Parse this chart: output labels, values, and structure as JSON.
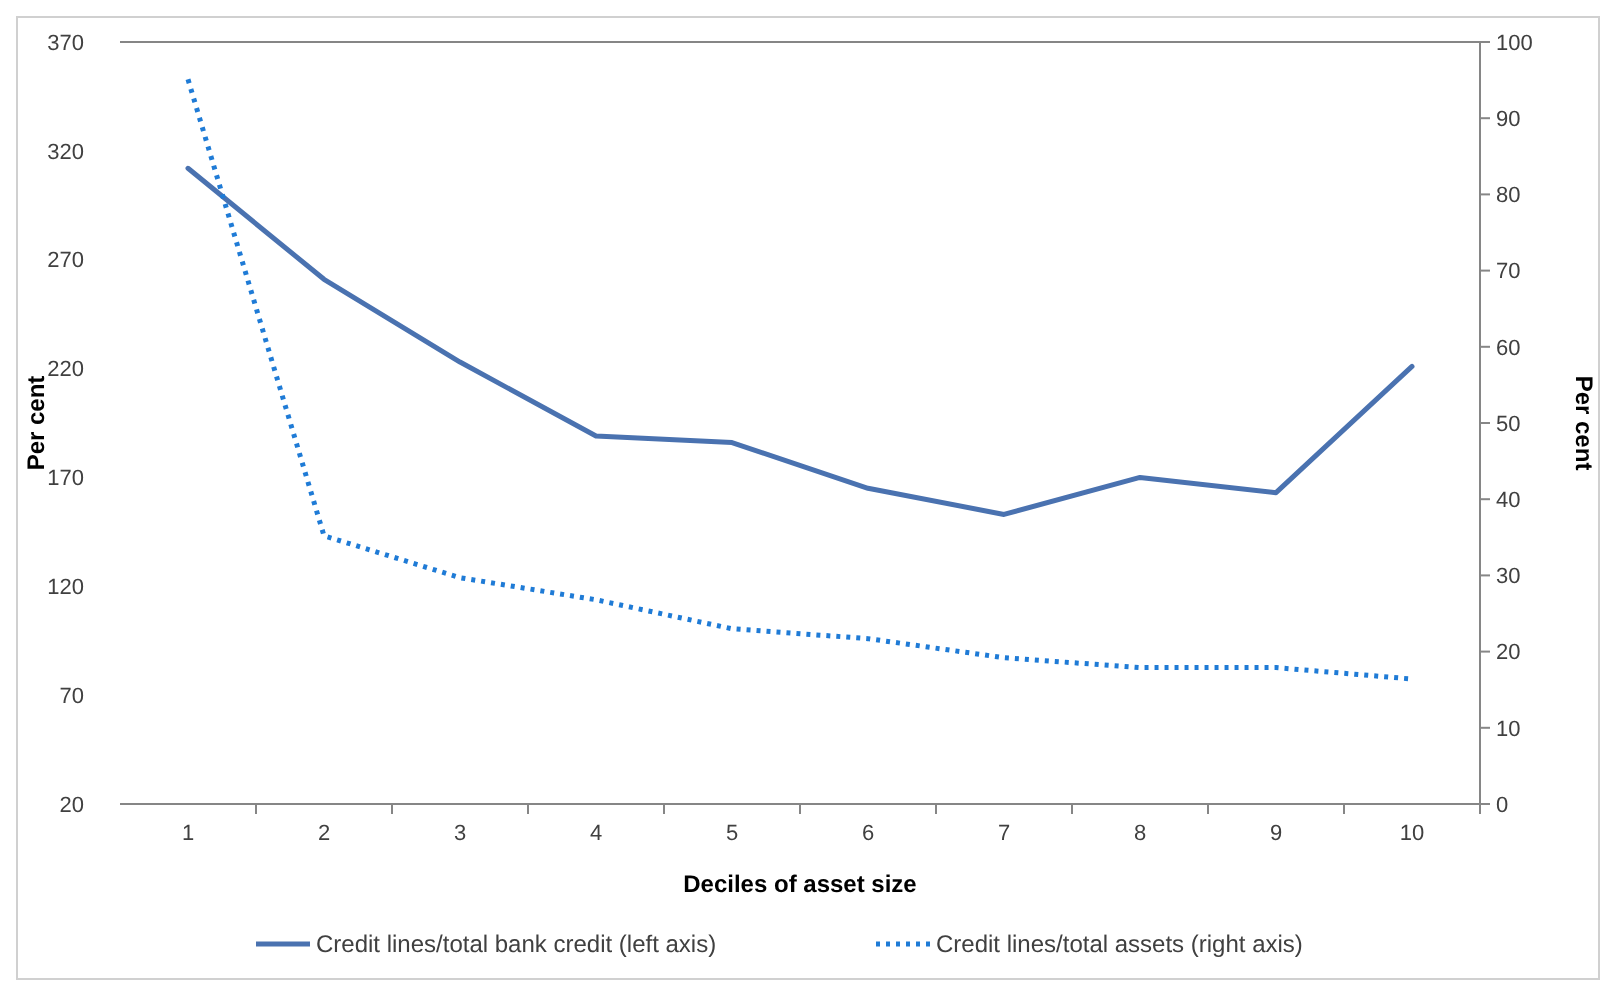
{
  "chart_data": {
    "type": "line",
    "xlabel": "Deciles of asset size",
    "ylabel": "Per cent",
    "y2label": "Per cent",
    "categories": [
      "1",
      "2",
      "3",
      "4",
      "5",
      "6",
      "7",
      "8",
      "9",
      "10"
    ],
    "series": [
      {
        "name": "Credit lines/total bank credit (left axis)",
        "color": "#4a72b0",
        "line_style": "solid",
        "values": [
          312,
          261,
          223,
          189,
          186,
          165,
          153,
          170,
          163,
          221
        ]
      },
      {
        "name": "Credit lines/total assets (right axis)",
        "color": "#1f7bd6",
        "line_style": "dotted",
        "axis": "y2",
        "values": [
          95.1,
          35.2,
          29.7,
          26.8,
          23.0,
          21.7,
          19.2,
          17.9,
          17.9,
          16.4
        ]
      }
    ],
    "ylim": [
      20,
      370
    ],
    "yticks": [
      20,
      70,
      120,
      170,
      220,
      270,
      320,
      370
    ],
    "y2lim": [
      0,
      100
    ],
    "y2ticks": [
      0,
      10,
      20,
      30,
      40,
      50,
      60,
      70,
      80,
      90,
      100
    ],
    "grid": false,
    "legend": "bottom",
    "marker": "none"
  }
}
